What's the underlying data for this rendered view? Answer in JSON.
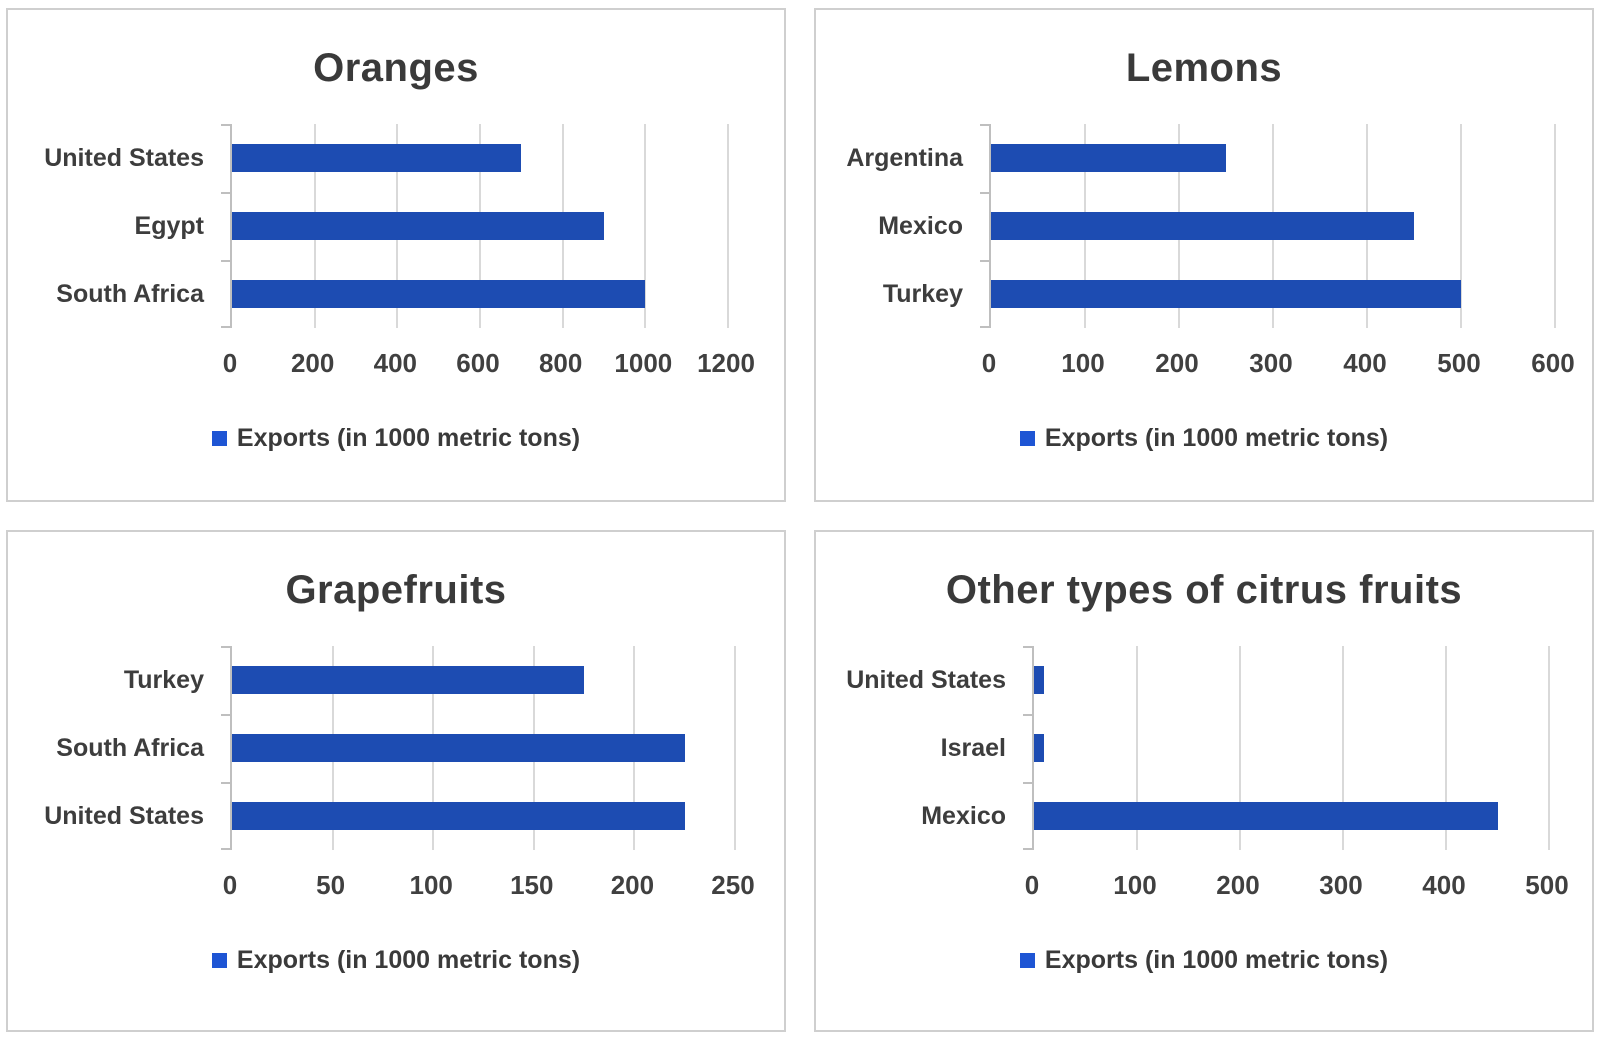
{
  "colors": {
    "bar": "#1d4cb2",
    "legend_marker": "#1e55d4",
    "title_text": "#3a3a3a",
    "label_text": "#3d3d3d",
    "tick_text": "#404040",
    "gridline": "#d9d9d9",
    "axis_line": "#bfbfbf",
    "panel_border": "#cfcfcf"
  },
  "chart_data": [
    {
      "type": "bar",
      "orientation": "horizontal",
      "title": "Oranges",
      "categories": [
        "United States",
        "Egypt",
        "South Africa"
      ],
      "values": [
        700,
        900,
        1000
      ],
      "series_label": "Exports (in 1000 metric tons)",
      "xlim": [
        0,
        1200
      ],
      "xticks": [
        0,
        200,
        400,
        600,
        800,
        1000,
        1200
      ],
      "grid": true,
      "legend_position": "bottom"
    },
    {
      "type": "bar",
      "orientation": "horizontal",
      "title": "Lemons",
      "categories": [
        "Argentina",
        "Mexico",
        "Turkey"
      ],
      "values": [
        250,
        450,
        500
      ],
      "series_label": "Exports (in 1000 metric tons)",
      "xlim": [
        0,
        600
      ],
      "xticks": [
        0,
        100,
        200,
        300,
        400,
        500,
        600
      ],
      "grid": true,
      "legend_position": "bottom"
    },
    {
      "type": "bar",
      "orientation": "horizontal",
      "title": "Grapefruits",
      "categories": [
        "Turkey",
        "South Africa",
        "United States"
      ],
      "values": [
        175,
        225,
        225
      ],
      "series_label": "Exports (in 1000 metric tons)",
      "xlim": [
        0,
        250
      ],
      "xticks": [
        0,
        50,
        100,
        150,
        200,
        250
      ],
      "grid": true,
      "legend_position": "bottom"
    },
    {
      "type": "bar",
      "orientation": "horizontal",
      "title": "Other types of citrus fruits",
      "categories": [
        "United States",
        "Israel",
        "Mexico"
      ],
      "values": [
        10,
        10,
        450
      ],
      "series_label": "Exports (in 1000 metric tons)",
      "xlim": [
        0,
        500
      ],
      "xticks": [
        0,
        100,
        200,
        300,
        400,
        500
      ],
      "grid": true,
      "legend_position": "bottom"
    }
  ]
}
